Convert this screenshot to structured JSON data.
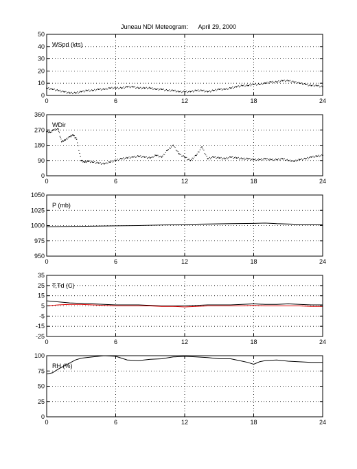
{
  "figure_title": "Juneau NDI Meteogram:      April 29, 2000",
  "chart_data": [
    {
      "type": "scatter",
      "label": "WSpd (kts)",
      "x_ticks": [
        0,
        6,
        12,
        18,
        24
      ],
      "y_ticks": [
        0,
        10,
        20,
        30,
        40,
        50
      ],
      "xlim": [
        0,
        24
      ],
      "ylim": [
        0,
        50
      ],
      "grid": true,
      "series": [
        {
          "color": "#000000",
          "marker": "dot",
          "x": [
            0,
            0.5,
            1,
            1.5,
            2,
            2.5,
            3,
            3.5,
            4,
            4.5,
            5,
            5.5,
            6,
            6.5,
            7,
            7.5,
            8,
            8.5,
            9,
            9.5,
            10,
            10.5,
            11,
            11.5,
            12,
            12.5,
            13,
            13.5,
            14,
            14.5,
            15,
            15.5,
            16,
            16.5,
            17,
            17.5,
            18,
            18.5,
            19,
            19.5,
            20,
            20.5,
            21,
            21.5,
            22,
            22.5,
            23,
            23.5,
            24
          ],
          "y": [
            6,
            5,
            4,
            3,
            2,
            2,
            3,
            4,
            4,
            5,
            5,
            6,
            6,
            6,
            7,
            7,
            6,
            6,
            6,
            5,
            5,
            4,
            4,
            3,
            3,
            3,
            4,
            4,
            3,
            4,
            5,
            5,
            6,
            7,
            8,
            8,
            9,
            9,
            10,
            11,
            11,
            12,
            12,
            11,
            10,
            9,
            8,
            8,
            7
          ]
        }
      ]
    },
    {
      "type": "scatter",
      "label": "WDir",
      "x_ticks": [
        0,
        6,
        12,
        18,
        24
      ],
      "y_ticks": [
        0,
        90,
        180,
        270,
        360
      ],
      "xlim": [
        0,
        24
      ],
      "ylim": [
        0,
        360
      ],
      "grid": true,
      "series": [
        {
          "color": "#000000",
          "marker": "dot",
          "x": [
            0,
            0.3,
            0.6,
            1,
            1.3,
            1.6,
            2,
            2.3,
            2.6,
            3,
            3.3,
            3.6,
            4,
            4.5,
            5,
            5.5,
            6,
            6.5,
            7,
            7.5,
            8,
            8.5,
            9,
            9.5,
            10,
            10.5,
            11,
            11.5,
            12,
            12.5,
            13,
            13.5,
            14,
            14.5,
            15,
            15.5,
            16,
            16.5,
            17,
            17.5,
            18,
            18.5,
            19,
            19.5,
            20,
            20.5,
            21,
            21.5,
            22,
            22.5,
            23,
            23.5,
            24
          ],
          "y": [
            260,
            255,
            270,
            275,
            200,
            210,
            230,
            240,
            215,
            90,
            80,
            85,
            80,
            75,
            70,
            80,
            90,
            100,
            105,
            110,
            115,
            110,
            105,
            120,
            110,
            150,
            180,
            130,
            110,
            90,
            120,
            170,
            100,
            110,
            105,
            100,
            110,
            105,
            100,
            100,
            95,
            95,
            100,
            95,
            95,
            100,
            90,
            85,
            95,
            100,
            110,
            115,
            120
          ]
        }
      ]
    },
    {
      "type": "line",
      "label": "P (mb)",
      "x_ticks": [
        0,
        6,
        12,
        18,
        24
      ],
      "y_ticks": [
        950,
        975,
        1000,
        1025,
        1050
      ],
      "xlim": [
        0,
        24
      ],
      "ylim": [
        950,
        1050
      ],
      "grid": true,
      "series": [
        {
          "color": "#000000",
          "x": [
            0,
            2,
            4,
            6,
            8,
            10,
            12,
            14,
            16,
            18,
            19,
            20,
            22,
            24
          ],
          "y": [
            998,
            998.5,
            999,
            999.5,
            1000,
            1001,
            1002,
            1002.5,
            1003,
            1003.5,
            1004,
            1003,
            1002,
            1002
          ]
        }
      ]
    },
    {
      "type": "line",
      "label": "T,Td (C)",
      "x_ticks": [
        0,
        6,
        12,
        18,
        24
      ],
      "y_ticks": [
        -25,
        -15,
        -5,
        5,
        15,
        25,
        35
      ],
      "xlim": [
        0,
        24
      ],
      "ylim": [
        -25,
        35
      ],
      "grid": true,
      "series": [
        {
          "color": "#000000",
          "x": [
            0,
            1,
            2,
            3,
            4,
            5,
            6,
            7,
            8,
            9,
            10,
            11,
            12,
            13,
            14,
            15,
            16,
            17,
            18,
            19,
            20,
            21,
            22,
            23,
            24
          ],
          "y": [
            10,
            9,
            8,
            7.5,
            7,
            6.5,
            6,
            6,
            6,
            5.5,
            5,
            5,
            5,
            5.5,
            6,
            6,
            6,
            6.5,
            7,
            6.5,
            6.5,
            7,
            6.5,
            6,
            6
          ]
        },
        {
          "color": "#e00000",
          "x": [
            0,
            1,
            2,
            3,
            4,
            5,
            6,
            7,
            8,
            9,
            10,
            11,
            12,
            13,
            14,
            15,
            16,
            17,
            18,
            19,
            20,
            21,
            22,
            23,
            24
          ],
          "y": [
            5,
            6,
            6.5,
            6.5,
            6,
            5.5,
            5,
            5,
            5,
            5,
            4.5,
            4.5,
            4,
            4.5,
            5,
            5,
            5,
            5,
            5.5,
            5,
            5,
            5,
            5,
            4.5,
            4.5
          ]
        }
      ]
    },
    {
      "type": "line",
      "label": "RH (%)",
      "x_ticks": [
        0,
        6,
        12,
        18,
        24
      ],
      "y_ticks": [
        0,
        25,
        50,
        75,
        100
      ],
      "xlim": [
        0,
        24
      ],
      "ylim": [
        0,
        100
      ],
      "grid": true,
      "series": [
        {
          "color": "#000000",
          "x": [
            0,
            0.5,
            1,
            1.5,
            2,
            2.5,
            3,
            4,
            5,
            6,
            7,
            8,
            9,
            10,
            11,
            12,
            13,
            14,
            15,
            16,
            17,
            17.5,
            18,
            18.5,
            19,
            20,
            21,
            22,
            23,
            24
          ],
          "y": [
            70,
            72,
            78,
            83,
            88,
            93,
            96,
            98,
            100,
            99,
            93,
            92,
            94,
            95,
            98,
            99,
            98,
            97,
            95,
            95,
            91,
            89,
            86,
            90,
            92,
            93,
            91,
            90,
            89,
            89
          ]
        }
      ]
    }
  ]
}
